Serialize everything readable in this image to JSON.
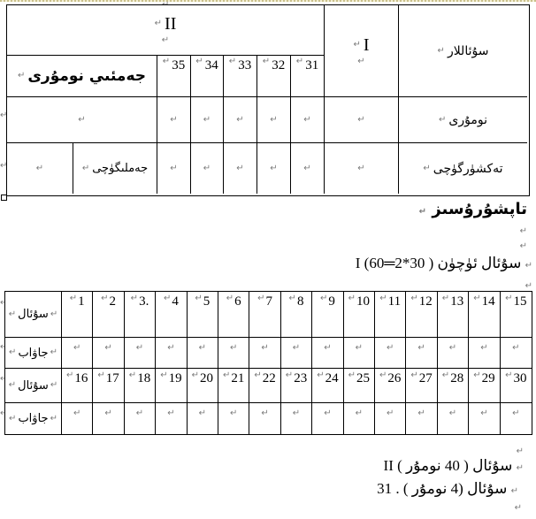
{
  "glyphs": {
    "mark": "↵"
  },
  "table1": {
    "roman_ii": "II",
    "roman_i": "I",
    "questions_label": "سۇئاللار",
    "total_score_label": "جەمئىي نومۇرى",
    "question_numbers": [
      "35",
      "34",
      "33",
      "32",
      "31"
    ],
    "score_label": "نومۇرى",
    "summer_label": "جەملىگۈچى",
    "checker_label": "تەكشۈرگۈچى"
  },
  "paragraphs": {
    "title_word": "تاپشۇرۇسىز",
    "section1_before": "I سۇئال ئۈچۈن ( 30*2",
    "section1_equals": "═",
    "section1_after": "60)",
    "section2_line": "II سۇئال ( 40 نومۇر )",
    "question31_line": "31 . سۇئال (4 نومۇر )"
  },
  "table2": {
    "question_label": "سۇئال",
    "answer_label": "جاۋاب",
    "row1_numbers": [
      "1",
      "2",
      "3.",
      "4",
      "5",
      "6",
      "7",
      "8",
      "9",
      "10",
      "11",
      "12",
      "13",
      "14",
      "15"
    ],
    "row3_numbers": [
      "16",
      "17",
      "18",
      "19",
      "20",
      "21",
      "22",
      "23",
      "24",
      "25",
      "26",
      "27",
      "28",
      "29",
      "30"
    ]
  }
}
